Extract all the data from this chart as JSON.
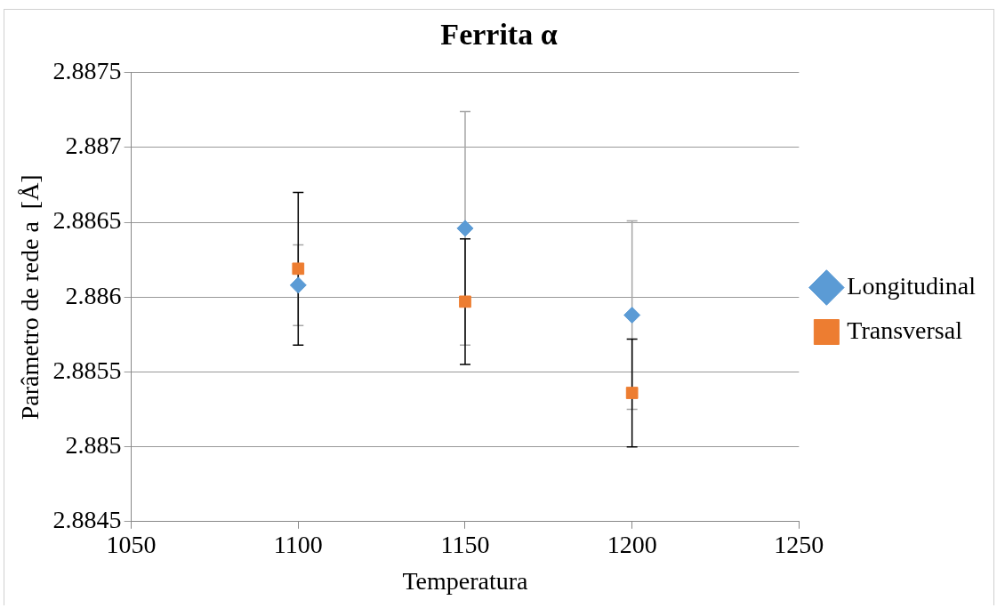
{
  "chart_data": {
    "type": "scatter",
    "title": "Ferrita α",
    "xlabel": "Temperatura",
    "ylabel": "Parâmetro de rede a  [Å]",
    "x": [
      1100,
      1150,
      1200
    ],
    "series": [
      {
        "name": "Longitudinal",
        "color": "#5b9bd5",
        "marker": "diamond",
        "values": [
          2.88608,
          2.88646,
          2.88588
        ],
        "errors": [
          0.00027,
          0.00078,
          0.00063
        ]
      },
      {
        "name": "Transversal",
        "color": "#ed7d31",
        "marker": "square",
        "values": [
          2.88619,
          2.88597,
          2.88536
        ],
        "errors": [
          0.00051,
          0.00042,
          0.00036
        ]
      }
    ],
    "xlim": [
      1050,
      1250
    ],
    "xticks": [
      1050,
      1100,
      1150,
      1200,
      1250
    ],
    "ylim": [
      2.8845,
      2.8875
    ],
    "yticks": [
      2.8845,
      2.885,
      2.8855,
      2.886,
      2.8865,
      2.887,
      2.8875
    ],
    "grid": "y",
    "legend": "right"
  }
}
